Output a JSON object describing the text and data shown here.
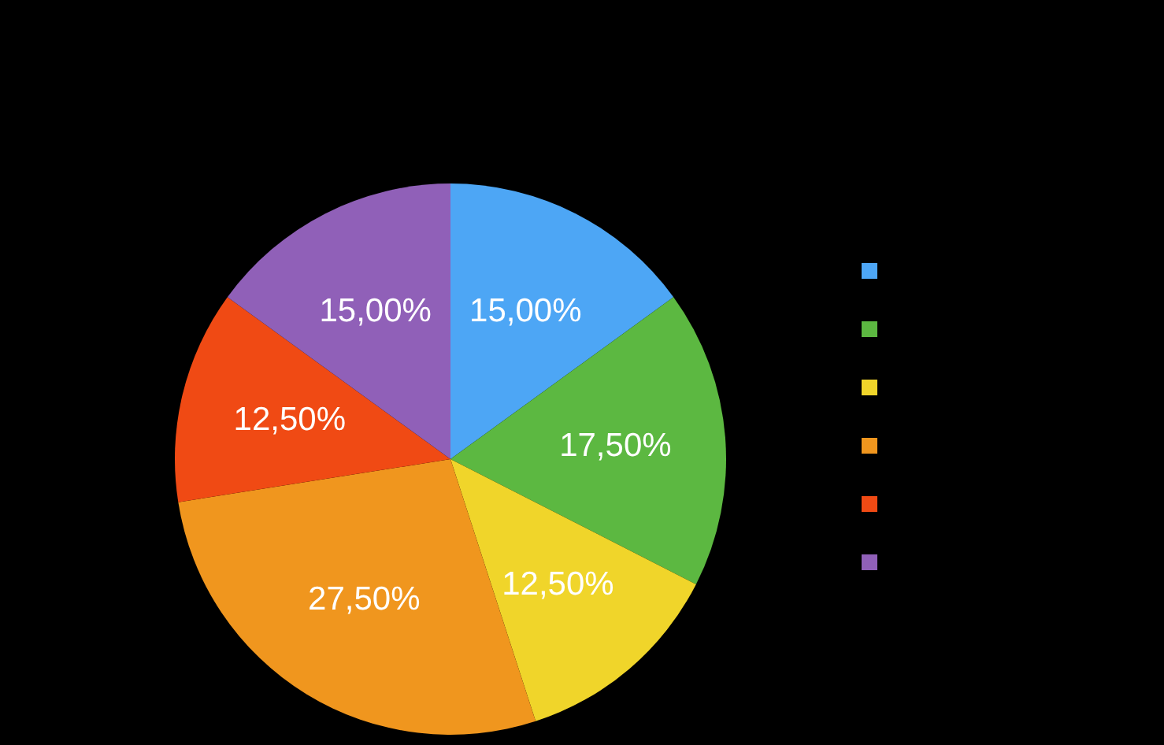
{
  "chart_data": {
    "type": "pie",
    "categories": [
      null,
      null,
      null,
      null,
      null,
      null
    ],
    "values": [
      15,
      17.5,
      12.5,
      27.5,
      12.5,
      15
    ],
    "colors": [
      "#4da6f5",
      "#5cb841",
      "#f0d52a",
      "#f0961e",
      "#f04a14",
      "#9060b8"
    ],
    "value_labels": [
      "15,00%",
      "17,50%",
      "12,50%",
      "27,50%",
      "12,50%",
      "15,00%"
    ]
  }
}
